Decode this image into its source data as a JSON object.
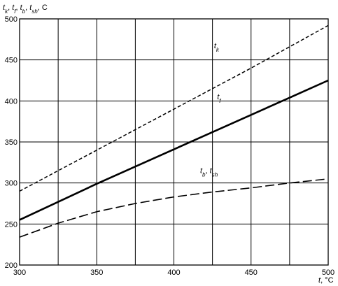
{
  "chart_data": {
    "type": "line",
    "title": "",
    "ylabel": {
      "parts": [
        {
          "t": "t",
          "i": true
        },
        {
          "t": "k",
          "i": true,
          "sub": true
        },
        {
          "t": ", "
        },
        {
          "t": "t",
          "i": true
        },
        {
          "t": "f",
          "i": true,
          "sub": true
        },
        {
          "t": ", "
        },
        {
          "t": "t",
          "i": true
        },
        {
          "t": "b",
          "i": true,
          "sub": true
        },
        {
          "t": ", "
        },
        {
          "t": "t",
          "i": true
        },
        {
          "t": "sh",
          "i": true,
          "sub": true
        },
        {
          "t": ", C"
        }
      ]
    },
    "xlabel": {
      "parts": [
        {
          "t": "t",
          "i": true
        },
        {
          "t": ", °C"
        }
      ]
    },
    "xlim": [
      300,
      500
    ],
    "ylim": [
      200,
      500
    ],
    "xticks": [
      300,
      350,
      400,
      450,
      500
    ],
    "yticks": [
      200,
      250,
      300,
      350,
      400,
      450,
      500
    ],
    "xgrid": [
      300,
      325,
      350,
      375,
      400,
      425,
      450,
      475,
      500
    ],
    "ygrid": [
      200,
      250,
      300,
      350,
      400,
      450,
      500
    ],
    "grid": true,
    "series": [
      {
        "key": "tk",
        "label": {
          "parts": [
            {
              "t": "t",
              "i": true
            },
            {
              "t": "k",
              "i": true,
              "sub": true
            }
          ]
        },
        "style": "short-dash",
        "points": [
          [
            300,
            290
          ],
          [
            350,
            340
          ],
          [
            400,
            390
          ],
          [
            450,
            440
          ],
          [
            500,
            492
          ]
        ]
      },
      {
        "key": "tf",
        "label": {
          "parts": [
            {
              "t": "t",
              "i": true
            },
            {
              "t": "f",
              "i": true,
              "sub": true
            }
          ]
        },
        "style": "solid-thick",
        "points": [
          [
            300,
            255
          ],
          [
            325,
            277
          ],
          [
            350,
            299
          ],
          [
            375,
            320
          ],
          [
            400,
            341
          ],
          [
            425,
            362
          ],
          [
            450,
            383
          ],
          [
            475,
            404
          ],
          [
            500,
            425
          ]
        ]
      },
      {
        "key": "tb",
        "label": {
          "parts": [
            {
              "t": "t",
              "i": true
            },
            {
              "t": "b",
              "i": true,
              "sub": true
            },
            {
              "t": ",  "
            },
            {
              "t": "t",
              "i": true
            },
            {
              "t": "sh",
              "i": true,
              "sub": true
            }
          ]
        },
        "style": "long-dash",
        "points": [
          [
            300,
            234
          ],
          [
            325,
            251
          ],
          [
            350,
            265
          ],
          [
            375,
            275
          ],
          [
            400,
            283
          ],
          [
            425,
            289
          ],
          [
            450,
            294
          ],
          [
            475,
            300
          ],
          [
            500,
            305
          ]
        ]
      }
    ],
    "annotations": [
      {
        "series": "tk",
        "x": 426,
        "y": 464
      },
      {
        "series": "tf",
        "x": 428,
        "y": 402
      },
      {
        "series": "tb",
        "x": 417,
        "y": 312
      }
    ]
  }
}
